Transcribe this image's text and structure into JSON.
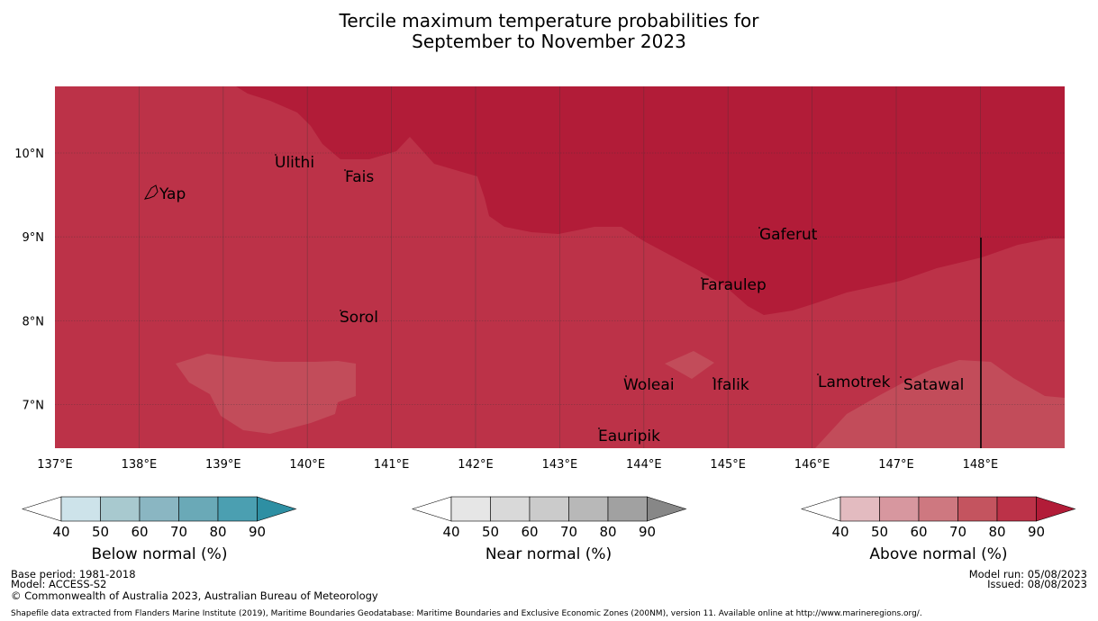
{
  "title": {
    "line1": "Tercile maximum temperature probabilities for",
    "line2": "September to November 2023"
  },
  "map": {
    "lon_ticks": [
      "137°E",
      "138°E",
      "139°E",
      "140°E",
      "141°E",
      "142°E",
      "143°E",
      "144°E",
      "145°E",
      "146°E",
      "147°E",
      "148°E"
    ],
    "lat_ticks": [
      "10°N",
      "9°N",
      "8°N",
      "7°N"
    ],
    "places": [
      {
        "name": "Ulithi"
      },
      {
        "name": "Fais"
      },
      {
        "name": "Yap"
      },
      {
        "name": "Gaferut"
      },
      {
        "name": "Faraulep"
      },
      {
        "name": "Sorol"
      },
      {
        "name": "Woleai"
      },
      {
        "name": "Ifalik"
      },
      {
        "name": "Lamotrek"
      },
      {
        "name": "Satawal"
      },
      {
        "name": "Eauripik"
      }
    ],
    "colors": {
      "above_80_90": "#b21c38",
      "above_70_80": "#bc3248",
      "above_60_70": "#c24c5a"
    }
  },
  "colorbars": [
    {
      "label": "Below normal (%)",
      "ticks": [
        "40",
        "50",
        "60",
        "70",
        "80",
        "90"
      ],
      "colors": [
        "#ffffff",
        "#cde3ea",
        "#a8c9cf",
        "#8ab6c2",
        "#6aa9b7",
        "#4b9fb1",
        "#2e8fa3"
      ]
    },
    {
      "label": "Near normal (%)",
      "ticks": [
        "40",
        "50",
        "60",
        "70",
        "80",
        "90"
      ],
      "colors": [
        "#ffffff",
        "#e6e6e6",
        "#d9d9d9",
        "#cbcbcb",
        "#b8b8b8",
        "#a1a1a1",
        "#878787"
      ]
    },
    {
      "label": "Above normal (%)",
      "ticks": [
        "40",
        "50",
        "60",
        "70",
        "80",
        "90"
      ],
      "colors": [
        "#ffffff",
        "#e3bbc0",
        "#d7979f",
        "#ce7880",
        "#c4545f",
        "#bc3248",
        "#b21c38"
      ]
    }
  ],
  "footer": {
    "base_period": "Base period: 1981-2018",
    "model": "Model: ACCESS-S2",
    "copyright": "© Commonwealth of Australia 2023, Australian Bureau of Meteorology",
    "shapefile": "Shapefile data extracted from Flanders Marine Institute (2019), Maritime Boundaries Geodatabase: Maritime Boundaries and Exclusive Economic Zones (200NM), version 11. Available online at http://www.marineregions.org/.",
    "model_run": "Model run: 05/08/2023",
    "issued": "Issued: 08/08/2023"
  }
}
